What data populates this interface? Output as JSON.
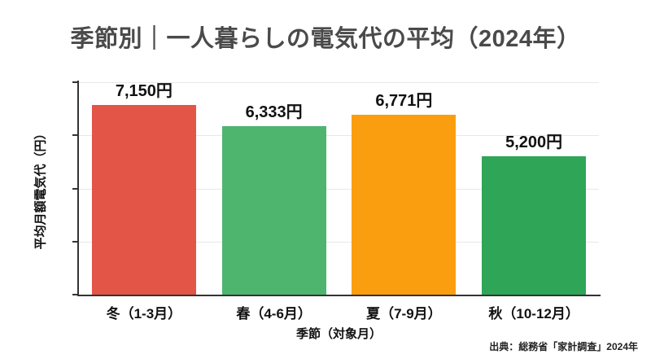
{
  "title": "季節別｜一人暮らしの電気代の平均（2024年）",
  "source": "出典：総務省「家計調査」2024年",
  "colors": {
    "title_text": "#4a4a4a",
    "axis": "#333333",
    "gridline": "#e8e8e8",
    "label_text": "#111111"
  },
  "chart_data": {
    "type": "bar",
    "title": "季節別｜一人暮らしの電気代の平均（2024年）",
    "categories": [
      "冬（1-3月）",
      "春（4-6月）",
      "夏（7-9月）",
      "秋（10-12月）"
    ],
    "category_ids": [
      "winter",
      "spring",
      "summer",
      "autumn"
    ],
    "values": [
      7150,
      6333,
      6771,
      5200
    ],
    "value_labels": [
      "7,150円",
      "6,333円",
      "6,771円",
      "5,200円"
    ],
    "bar_colors": [
      "#E25547",
      "#4DB56E",
      "#FA9E10",
      "#2EA557"
    ],
    "xlabel": "季節（対象月）",
    "ylabel": "平均月額電気代（円）",
    "ylim": [
      0,
      8000
    ],
    "ytick_step": 2000,
    "ytick_labels_shown": false,
    "grid": true,
    "legend": "none"
  }
}
